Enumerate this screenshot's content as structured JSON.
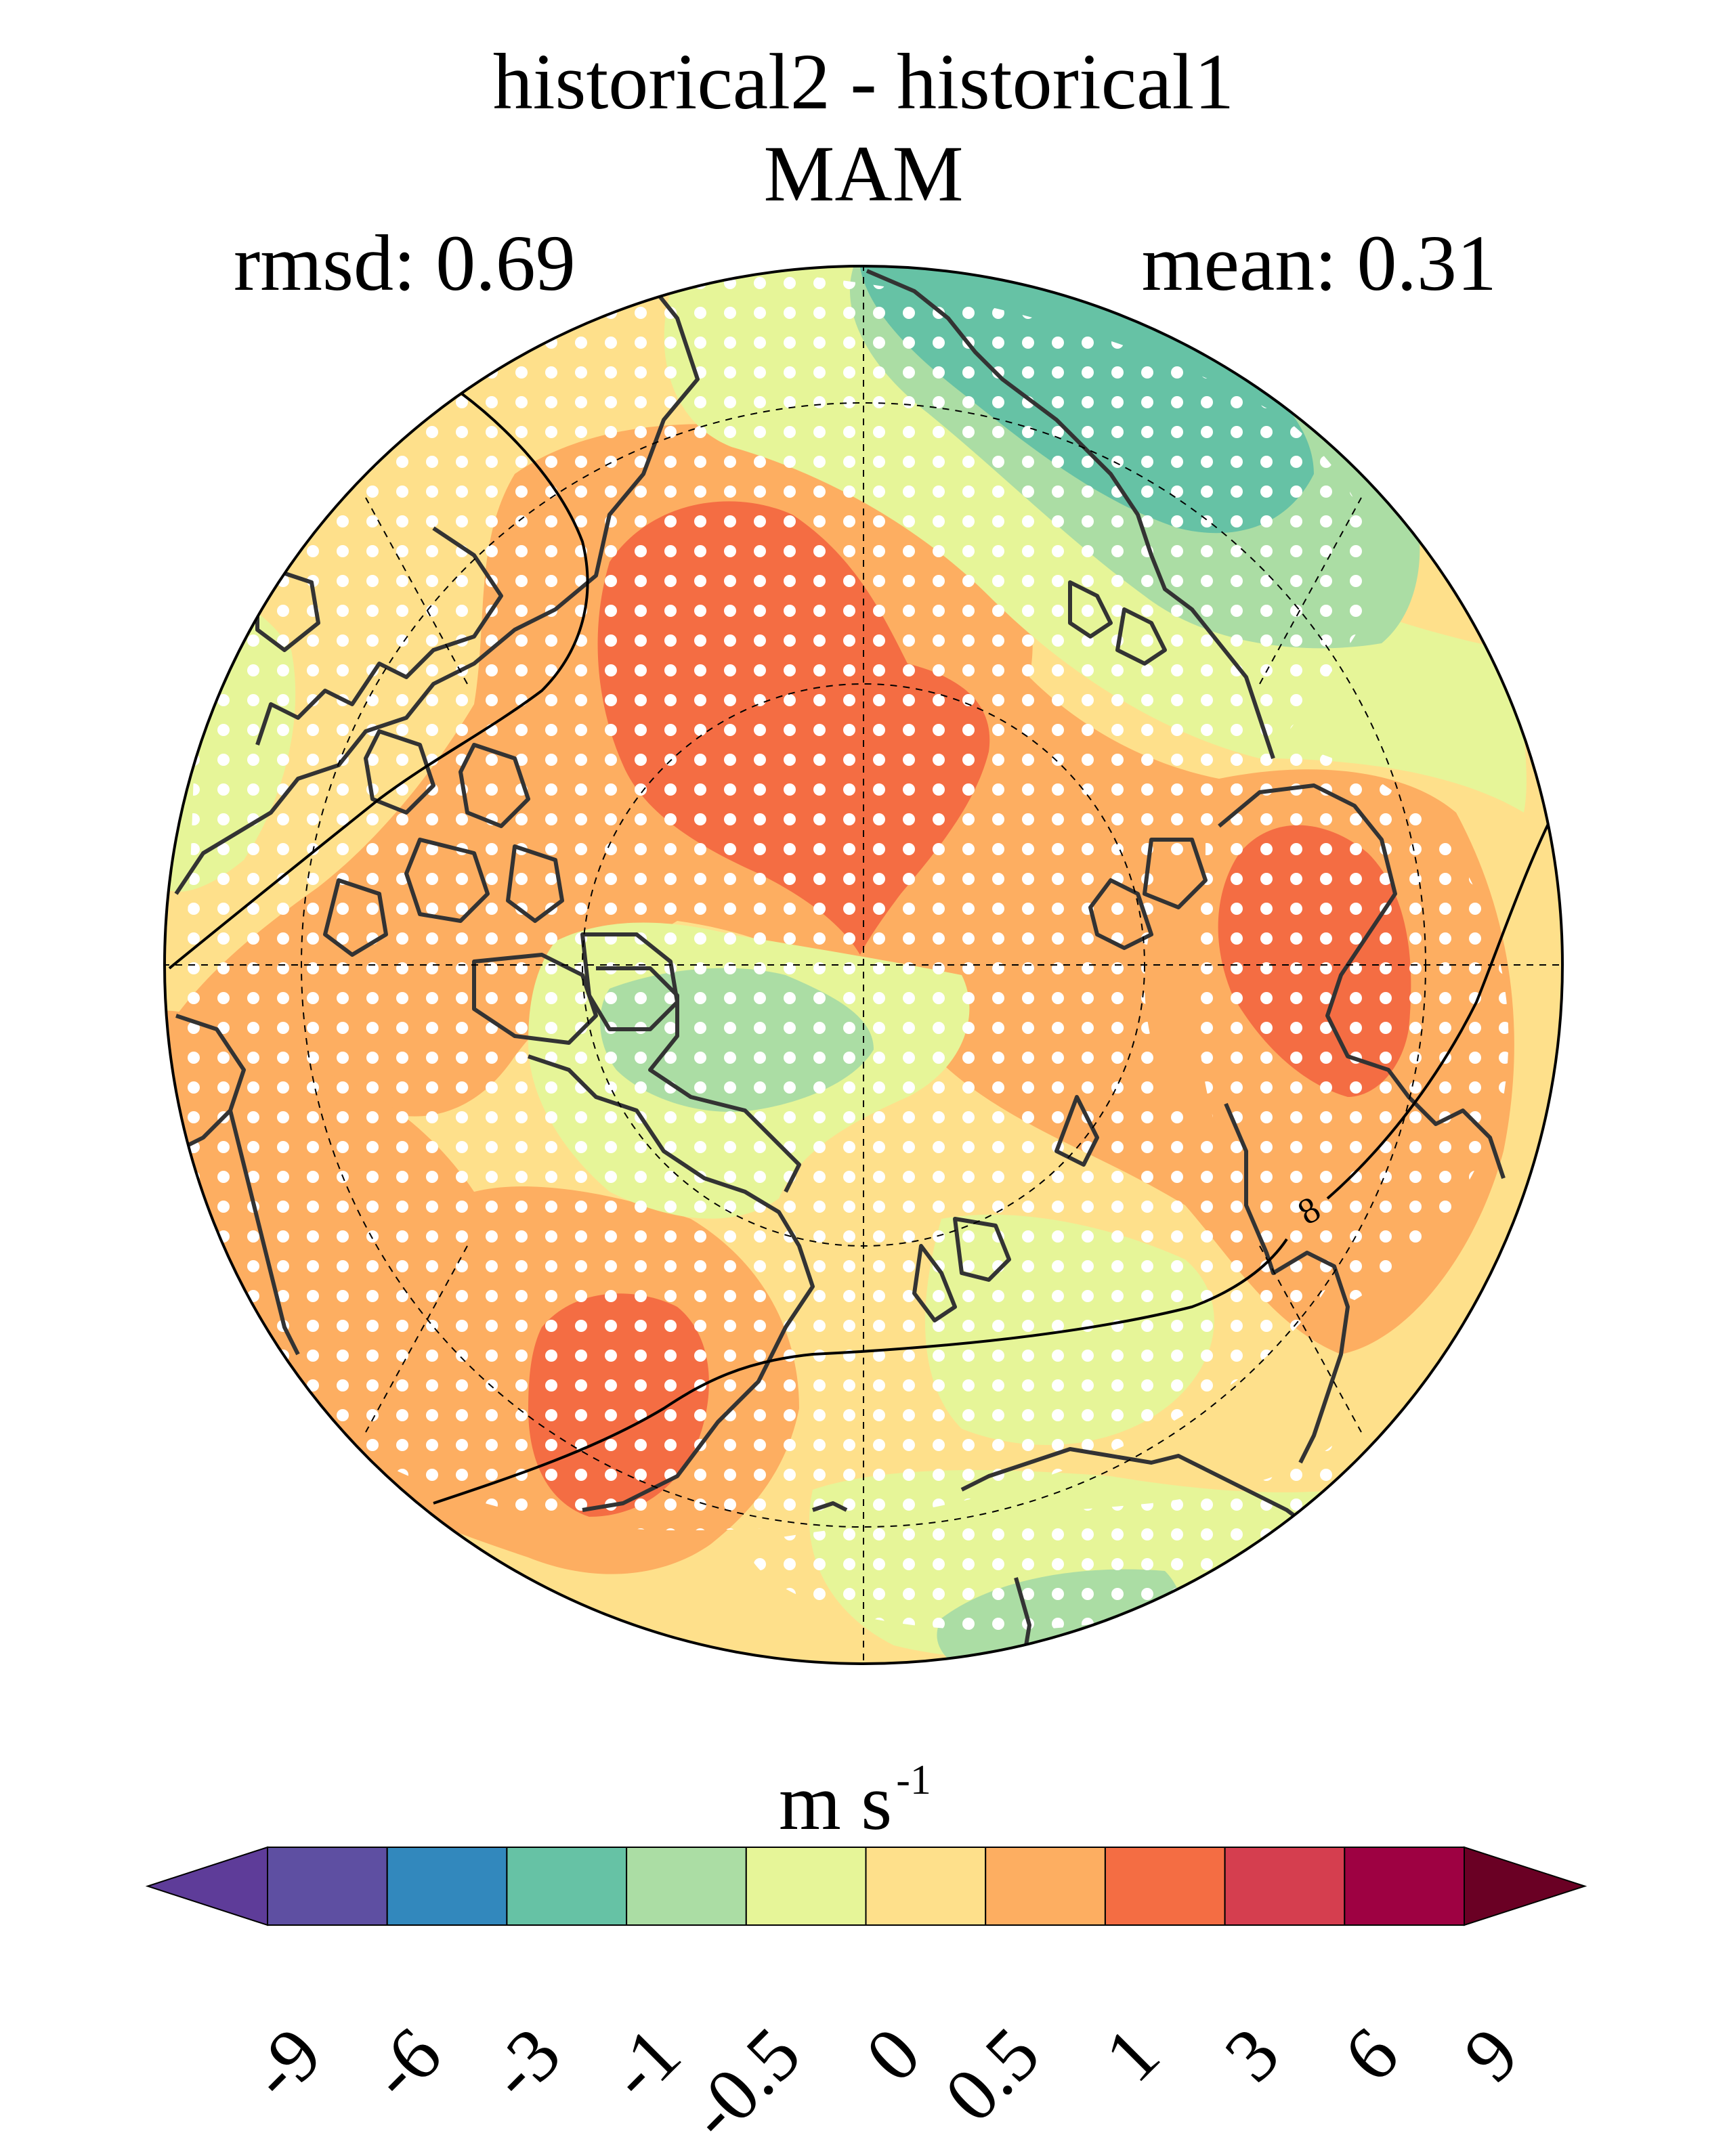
{
  "title": "historical2 - historical1",
  "subtitle": "MAM",
  "stats": {
    "left": "rmsd: 0.69",
    "right": "mean: 0.31"
  },
  "units": {
    "base": "m s",
    "exponent": "-1"
  },
  "contour_label": "8",
  "colorbar": {
    "levels": [
      "-9",
      "-6",
      "-3",
      "-1",
      "-0.5",
      "0",
      "0.5",
      "1",
      "3",
      "6",
      "9"
    ],
    "colors": [
      "#5e3c99",
      "#5e4fa2",
      "#3288bd",
      "#66c2a5",
      "#abdda4",
      "#e6f598",
      "#fee08b",
      "#fdae61",
      "#f46d43",
      "#d53e4f",
      "#9e0142",
      "#6a0024"
    ],
    "extend": "both"
  },
  "map": {
    "projection": "north polar stereographic",
    "background": "#fee08b",
    "stippling": "white dots",
    "grid": "dashed latitude circles and meridians"
  }
}
